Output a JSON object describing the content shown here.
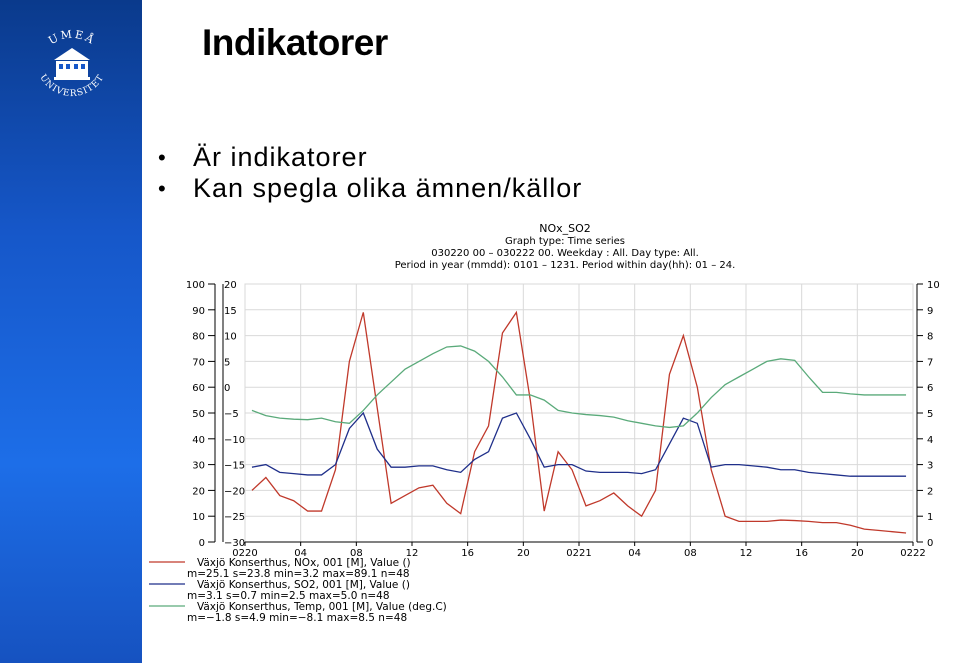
{
  "slide": {
    "title": "Indikatorer",
    "bullets": [
      "Är indikatorer",
      "Kan spegla olika ämnen/källor"
    ]
  },
  "logo": {
    "text_top": "UMEÅ",
    "text_bottom": "UNIVERSITET",
    "color": "#ffffff"
  },
  "colors": {
    "sidebar": "#1657c9",
    "nox": "#c0392b",
    "so2": "#1f2f8a",
    "temp": "#5aaa7a"
  },
  "chart_data": {
    "type": "line",
    "title": "NOx_SO2",
    "subtitle_lines": [
      "Graph type: Time series",
      "030220 00 – 030222 00. Weekday : All. Day type: All.",
      "Period in year (mmdd): 0101 – 1231. Period within day(hh): 01 – 24."
    ],
    "x_ticks": [
      "0220",
      "04",
      "08",
      "12",
      "16",
      "20",
      "0221",
      "04",
      "08",
      "12",
      "16",
      "20",
      "0222"
    ],
    "x_range": [
      0,
      48
    ],
    "axes": {
      "left_nox": {
        "range": [
          0,
          100
        ],
        "ticks": [
          "0",
          "10",
          "20",
          "30",
          "40",
          "50",
          "60",
          "70",
          "80",
          "90",
          "100"
        ]
      },
      "left_temp": {
        "range": [
          -30,
          20
        ],
        "ticks": [
          "−30",
          "−25",
          "−20",
          "−15",
          "−10",
          "−5",
          "0",
          "5",
          "10",
          "15",
          "20"
        ]
      },
      "right_so2": {
        "range": [
          0,
          10
        ],
        "ticks": [
          "0",
          "1",
          "2",
          "3",
          "4",
          "5",
          "6",
          "7",
          "8",
          "9",
          "10"
        ]
      }
    },
    "grid": true,
    "series": [
      {
        "name": "Växjö Konserthus, NOx, 001 [M], Value ()",
        "stats": "m=25.1 s=23.8 min=3.2 max=89.1 n=48",
        "axis": "left_nox",
        "color": "#c0392b",
        "values": [
          20,
          25,
          18,
          16,
          12,
          12,
          28,
          70,
          89,
          52,
          15,
          18,
          21,
          22,
          15,
          11,
          35,
          45,
          81,
          89,
          55,
          12,
          35,
          28,
          14,
          16,
          19,
          14,
          10,
          20,
          65,
          80,
          60,
          28,
          10,
          8,
          8,
          8,
          8.5,
          8.3,
          8,
          7.5,
          7.5,
          6.5,
          5,
          4.5,
          4,
          3.5
        ]
      },
      {
        "name": "Växjö Konserthus, SO2, 001 [M], Value ()",
        "stats": "m=3.1 s=0.7 min=2.5 max=5.0 n=48",
        "axis": "right_so2",
        "color": "#1f2f8a",
        "values": [
          2.9,
          3.0,
          2.7,
          2.65,
          2.6,
          2.6,
          3.0,
          4.4,
          5.0,
          3.6,
          2.9,
          2.9,
          2.95,
          2.95,
          2.8,
          2.7,
          3.2,
          3.5,
          4.8,
          5.0,
          4.0,
          2.9,
          3.0,
          3.0,
          2.75,
          2.7,
          2.7,
          2.7,
          2.65,
          2.8,
          3.8,
          4.8,
          4.6,
          2.9,
          3.0,
          3.0,
          2.95,
          2.9,
          2.8,
          2.8,
          2.7,
          2.65,
          2.6,
          2.55,
          2.55,
          2.55,
          2.55,
          2.55
        ]
      },
      {
        "name": "Växjö Konserthus, Temp, 001 [M], Value (deg.C)",
        "stats": "m=−1.8 s=4.9 min=−8.1 max=8.5 n=48",
        "axis": "left_temp",
        "color": "#5aaa7a",
        "values": [
          -4.5,
          -5.5,
          -6.0,
          -6.2,
          -6.3,
          -6.0,
          -6.7,
          -7.0,
          -4.5,
          -1.5,
          1.0,
          3.5,
          5.0,
          6.5,
          7.8,
          8.0,
          7.0,
          5.0,
          2.0,
          -1.5,
          -1.5,
          -2.5,
          -4.5,
          -5.0,
          -5.3,
          -5.5,
          -5.8,
          -6.5,
          -7.0,
          -7.5,
          -7.8,
          -7.5,
          -5.0,
          -2.0,
          0.5,
          2.0,
          3.5,
          5.0,
          5.5,
          5.2,
          2.0,
          -1.0,
          -1.0,
          -1.3,
          -1.5,
          -1.5,
          -1.5,
          -1.5
        ]
      }
    ]
  }
}
